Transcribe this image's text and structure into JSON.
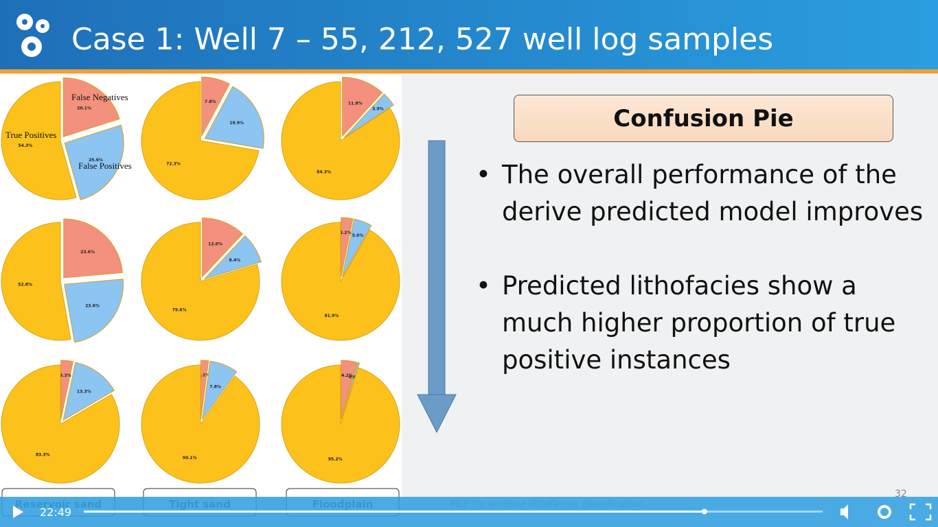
{
  "header": {
    "title": "Case 1: Well 7 – 55, 212, 527 well log samples"
  },
  "chart_data": [
    {
      "type": "pie",
      "categories": [
        "False Negatives",
        "False Positives",
        "True Positives"
      ],
      "values": [
        20.1,
        25.6,
        54.3
      ],
      "value_labels": [
        "20.1%",
        "25.6%",
        "54.3%"
      ],
      "colors": [
        "#f4907e",
        "#8cc4f2",
        "#fcc21b"
      ]
    },
    {
      "type": "pie",
      "values": [
        7.8,
        19.9,
        72.3
      ],
      "value_labels": [
        "7.8%",
        "19.9%",
        "72.3%"
      ],
      "colors": [
        "#f4907e",
        "#8cc4f2",
        "#fcc21b"
      ]
    },
    {
      "type": "pie",
      "values": [
        11.8,
        3.9,
        84.3
      ],
      "value_labels": [
        "11.8%",
        "3.9%",
        "84.3%"
      ],
      "colors": [
        "#f4907e",
        "#8cc4f2",
        "#fcc21b"
      ]
    },
    {
      "type": "pie",
      "values": [
        23.6,
        23.6,
        52.8
      ],
      "value_labels": [
        "23.6%",
        "23.6%",
        "52.8%"
      ],
      "colors": [
        "#f4907e",
        "#8cc4f2",
        "#fcc21b"
      ]
    },
    {
      "type": "pie",
      "values": [
        12.0,
        8.4,
        79.6
      ],
      "value_labels": [
        "12.0%",
        "8.4%",
        "79.6%"
      ],
      "colors": [
        "#f4907e",
        "#8cc4f2",
        "#fcc21b"
      ]
    },
    {
      "type": "pie",
      "values": [
        3.2,
        5.0,
        91.9
      ],
      "value_labels": [
        "3.2%",
        "5.0%",
        "91.9%"
      ],
      "colors": [
        "#f4907e",
        "#8cc4f2",
        "#fcc21b"
      ]
    },
    {
      "type": "pie",
      "values": [
        3.3,
        13.3,
        83.3
      ],
      "value_labels": [
        "3.3%",
        "13.3%",
        "83.3%"
      ],
      "colors": [
        "#f4907e",
        "#8cc4f2",
        "#fcc21b"
      ]
    },
    {
      "type": "pie",
      "values": [
        2.1,
        7.8,
        90.1
      ],
      "value_labels": [
        "2.1%",
        "7.8%",
        "90.1%"
      ],
      "colors": [
        "#f4907e",
        "#8cc4f2",
        "#fcc21b"
      ]
    },
    {
      "type": "pie",
      "values": [
        4.2,
        0.6,
        95.2
      ],
      "value_labels": [
        "4.2%",
        "0.6%",
        "95.2%"
      ],
      "colors": [
        "#f4907e",
        "#8cc4f2",
        "#fcc21b"
      ]
    }
  ],
  "column_labels": [
    "Reservoir sand",
    "Tight sand",
    "Floodplain"
  ],
  "panel": {
    "title": "Confusion Pie",
    "bullets": [
      "The overall performance of the derive predicted model improves",
      "Predicted lithofacies show a much higher proportion of true positive instances"
    ]
  },
  "footer": {
    "text": "MLP for wireline lithofacies classification",
    "slide_number": "32"
  },
  "player": {
    "time": "22:49",
    "progress": 0.84
  }
}
